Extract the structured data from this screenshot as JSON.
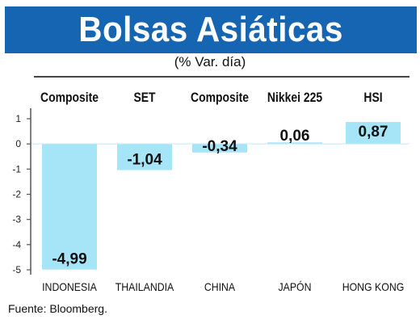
{
  "header": {
    "title": "Bolsas Asiáticas",
    "subtitle": "(% Var. día)"
  },
  "chart_data": {
    "type": "bar",
    "title": "Bolsas Asiáticas",
    "subtitle": "(% Var. día)",
    "categories": [
      "INDONESIA",
      "THAILANDIA",
      "CHINA",
      "JAPÓN",
      "HONG KONG"
    ],
    "indices": [
      "Composite",
      "SET",
      "Composite",
      "Nikkei 225",
      "HSI"
    ],
    "values": [
      -4.99,
      -1.04,
      -0.34,
      0.06,
      0.87
    ],
    "value_labels": [
      "-4,99",
      "-1,04",
      "-0,34",
      "0,06",
      "0,87"
    ],
    "ylim": [
      -5,
      1
    ],
    "yticks": [
      1,
      0,
      -1,
      -2,
      -3,
      -4,
      -5
    ],
    "ytick_labels": [
      "1",
      "0",
      "-1",
      "-2",
      "-3",
      "-4",
      "-5"
    ],
    "xlabel": "",
    "ylabel": "",
    "grid": false,
    "bar_color": "#a6e4f7",
    "axis_color": "#555555"
  },
  "source": "Fuente: Bloomberg."
}
